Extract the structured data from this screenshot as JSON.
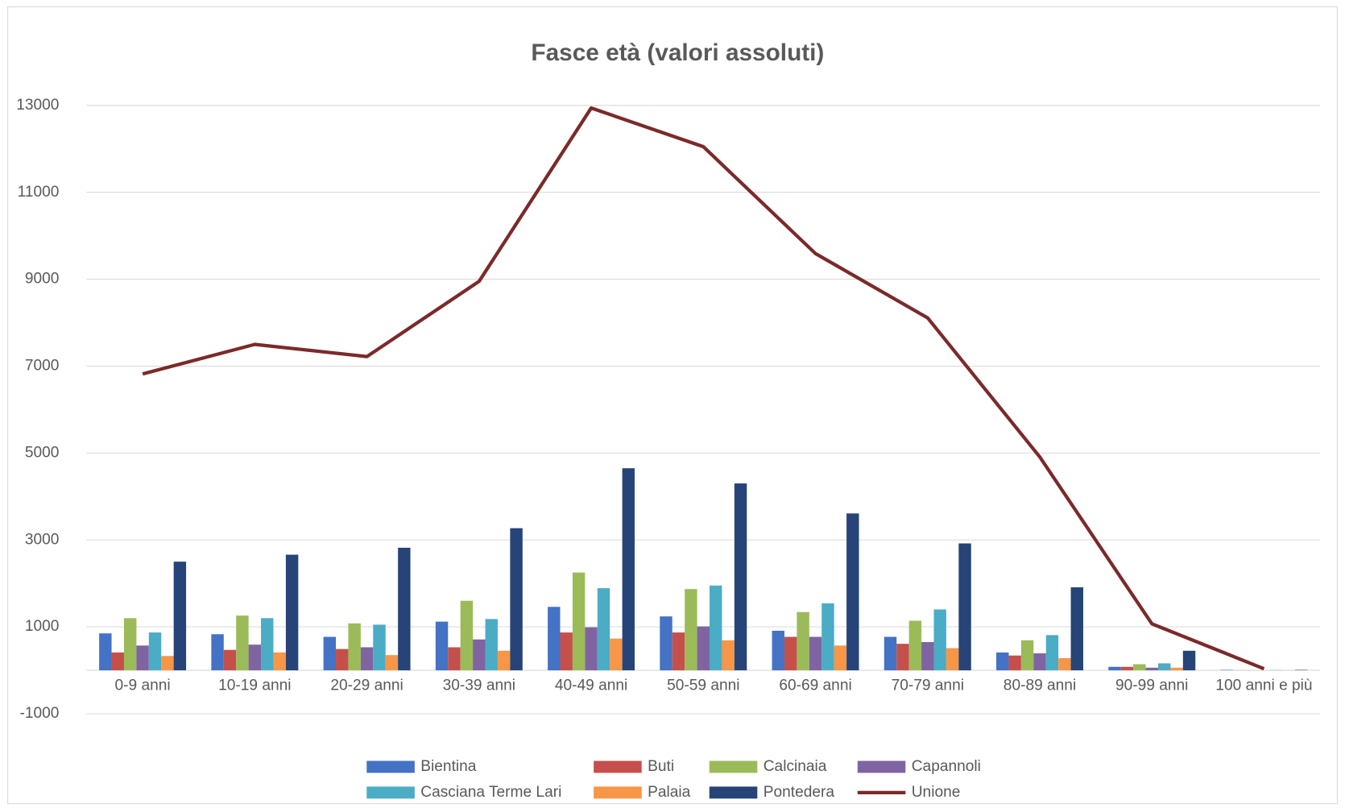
{
  "chart_data": {
    "type": "bar",
    "title": "Fasce età (valori assoluti)",
    "categories": [
      "0-9 anni",
      "10-19 anni",
      "20-29 anni",
      "30-39 anni",
      "40-49 anni",
      "50-59 anni",
      "60-69 anni",
      "70-79 anni",
      "80-89 anni",
      "90-99 anni",
      "100 anni e più"
    ],
    "series": [
      {
        "name": "Bientina",
        "color": "#4472c4",
        "values": [
          850,
          830,
          770,
          1120,
          1460,
          1240,
          910,
          770,
          410,
          80,
          10
        ]
      },
      {
        "name": "Buti",
        "color": "#c5504b",
        "values": [
          410,
          470,
          490,
          530,
          870,
          870,
          770,
          610,
          340,
          80,
          2
        ]
      },
      {
        "name": "Calcinaia",
        "color": "#9bbb59",
        "values": [
          1200,
          1260,
          1080,
          1600,
          2250,
          1870,
          1340,
          1140,
          690,
          140,
          3
        ]
      },
      {
        "name": "Capannoli",
        "color": "#8064a2",
        "values": [
          570,
          590,
          530,
          710,
          990,
          1010,
          770,
          650,
          390,
          60,
          1
        ]
      },
      {
        "name": "Casciana Terme Lari",
        "color": "#4bacc6",
        "values": [
          870,
          1200,
          1050,
          1180,
          1890,
          1950,
          1540,
          1400,
          810,
          160,
          5
        ]
      },
      {
        "name": "Palaia",
        "color": "#f79646",
        "values": [
          330,
          410,
          350,
          450,
          730,
          690,
          570,
          510,
          280,
          60,
          2
        ]
      },
      {
        "name": "Pontedera",
        "color": "#264478",
        "values": [
          2500,
          2660,
          2820,
          3270,
          4650,
          4300,
          3610,
          2920,
          1910,
          450,
          10
        ]
      },
      {
        "name": "Unione",
        "type": "line",
        "color": "#7b2a2a",
        "values": [
          6820,
          7500,
          7220,
          8950,
          12940,
          12050,
          9590,
          8110,
          4910,
          1070,
          35
        ]
      }
    ],
    "ylim": [
      -1000,
      13000
    ],
    "yticks": [
      -1000,
      1000,
      3000,
      5000,
      7000,
      9000,
      11000,
      13000
    ],
    "grid": true,
    "legend": "bottom"
  }
}
